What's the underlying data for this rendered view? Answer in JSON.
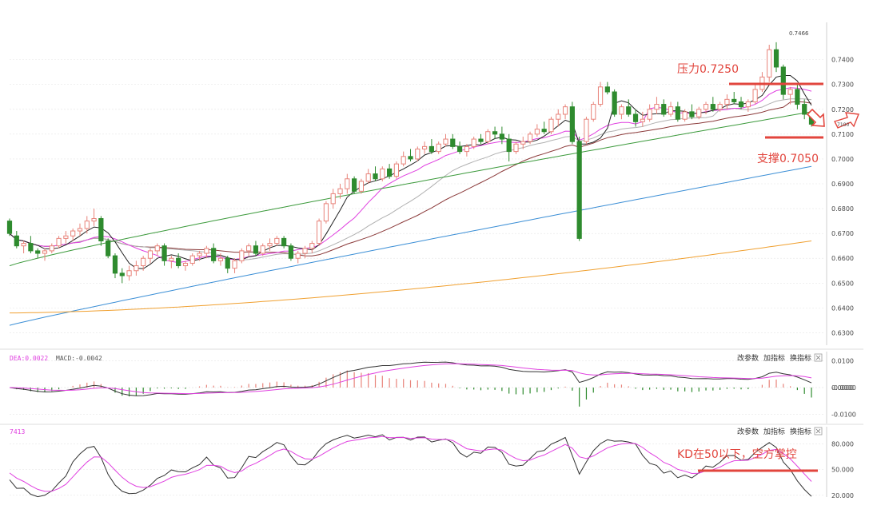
{
  "chart_data": [
    {
      "type": "candlestick",
      "name": "price",
      "ylim": [
        0.625,
        0.755
      ],
      "y_ticks": [
        "0.6300",
        "0.6400",
        "0.6500",
        "0.6600",
        "0.6700",
        "0.6800",
        "0.6900",
        "0.7000",
        "0.7100",
        "0.7200",
        "0.7300",
        "0.7400"
      ],
      "high_label": "0.7466",
      "grid": true,
      "colors": {
        "up": "#e8837a",
        "down": "#2e8b2e",
        "ma5": "#222222",
        "ma10": "#e040e0",
        "ma20": "#b0b0b0",
        "ma30": "#8b3a3a",
        "ma60": "#3c9a3c",
        "ma120": "#3c8fd6",
        "ma250": "#f0a030"
      },
      "candles": [
        [
          0.675,
          0.676,
          0.669,
          0.67
        ],
        [
          0.669,
          0.671,
          0.664,
          0.665
        ],
        [
          0.665,
          0.667,
          0.662,
          0.666
        ],
        [
          0.666,
          0.669,
          0.662,
          0.663
        ],
        [
          0.663,
          0.664,
          0.66,
          0.662
        ],
        [
          0.662,
          0.664,
          0.659,
          0.663
        ],
        [
          0.663,
          0.666,
          0.662,
          0.665
        ],
        [
          0.665,
          0.669,
          0.664,
          0.668
        ],
        [
          0.668,
          0.671,
          0.666,
          0.669
        ],
        [
          0.669,
          0.672,
          0.667,
          0.671
        ],
        [
          0.671,
          0.674,
          0.669,
          0.672
        ],
        [
          0.672,
          0.677,
          0.67,
          0.675
        ],
        [
          0.675,
          0.68,
          0.673,
          0.676
        ],
        [
          0.676,
          0.677,
          0.665,
          0.667
        ],
        [
          0.667,
          0.668,
          0.66,
          0.661
        ],
        [
          0.661,
          0.662,
          0.652,
          0.654
        ],
        [
          0.654,
          0.656,
          0.65,
          0.653
        ],
        [
          0.653,
          0.657,
          0.651,
          0.655
        ],
        [
          0.655,
          0.659,
          0.653,
          0.657
        ],
        [
          0.657,
          0.661,
          0.655,
          0.66
        ],
        [
          0.66,
          0.664,
          0.658,
          0.663
        ],
        [
          0.663,
          0.666,
          0.661,
          0.665
        ],
        [
          0.665,
          0.666,
          0.657,
          0.659
        ],
        [
          0.659,
          0.661,
          0.656,
          0.66
        ],
        [
          0.66,
          0.662,
          0.656,
          0.657
        ],
        [
          0.657,
          0.659,
          0.655,
          0.658
        ],
        [
          0.658,
          0.662,
          0.657,
          0.661
        ],
        [
          0.661,
          0.663,
          0.659,
          0.662
        ],
        [
          0.662,
          0.665,
          0.66,
          0.664
        ],
        [
          0.664,
          0.666,
          0.658,
          0.659
        ],
        [
          0.659,
          0.662,
          0.657,
          0.66
        ],
        [
          0.66,
          0.661,
          0.654,
          0.656
        ],
        [
          0.656,
          0.66,
          0.654,
          0.659
        ],
        [
          0.659,
          0.664,
          0.658,
          0.663
        ],
        [
          0.663,
          0.666,
          0.661,
          0.665
        ],
        [
          0.665,
          0.667,
          0.661,
          0.662
        ],
        [
          0.662,
          0.666,
          0.661,
          0.665
        ],
        [
          0.665,
          0.668,
          0.663,
          0.666
        ],
        [
          0.666,
          0.669,
          0.665,
          0.668
        ],
        [
          0.668,
          0.669,
          0.664,
          0.665
        ],
        [
          0.665,
          0.666,
          0.659,
          0.66
        ],
        [
          0.66,
          0.663,
          0.658,
          0.662
        ],
        [
          0.662,
          0.665,
          0.66,
          0.664
        ],
        [
          0.664,
          0.667,
          0.662,
          0.666
        ],
        [
          0.666,
          0.676,
          0.665,
          0.675
        ],
        [
          0.675,
          0.683,
          0.674,
          0.682
        ],
        [
          0.682,
          0.688,
          0.68,
          0.686
        ],
        [
          0.686,
          0.69,
          0.684,
          0.688
        ],
        [
          0.688,
          0.694,
          0.686,
          0.692
        ],
        [
          0.692,
          0.693,
          0.686,
          0.687
        ],
        [
          0.687,
          0.692,
          0.686,
          0.691
        ],
        [
          0.691,
          0.696,
          0.69,
          0.694
        ],
        [
          0.694,
          0.697,
          0.691,
          0.692
        ],
        [
          0.692,
          0.697,
          0.691,
          0.696
        ],
        [
          0.696,
          0.698,
          0.692,
          0.693
        ],
        [
          0.693,
          0.699,
          0.692,
          0.698
        ],
        [
          0.698,
          0.703,
          0.697,
          0.701
        ],
        [
          0.701,
          0.704,
          0.699,
          0.7
        ],
        [
          0.7,
          0.705,
          0.699,
          0.704
        ],
        [
          0.704,
          0.707,
          0.702,
          0.705
        ],
        [
          0.705,
          0.708,
          0.702,
          0.703
        ],
        [
          0.703,
          0.707,
          0.702,
          0.706
        ],
        [
          0.706,
          0.71,
          0.705,
          0.708
        ],
        [
          0.708,
          0.71,
          0.704,
          0.705
        ],
        [
          0.705,
          0.707,
          0.702,
          0.703
        ],
        [
          0.703,
          0.706,
          0.701,
          0.705
        ],
        [
          0.705,
          0.709,
          0.704,
          0.708
        ],
        [
          0.708,
          0.71,
          0.706,
          0.707
        ],
        [
          0.707,
          0.712,
          0.706,
          0.711
        ],
        [
          0.711,
          0.713,
          0.708,
          0.71
        ],
        [
          0.71,
          0.713,
          0.706,
          0.708
        ],
        [
          0.708,
          0.71,
          0.699,
          0.703
        ],
        [
          0.703,
          0.707,
          0.702,
          0.706
        ],
        [
          0.706,
          0.709,
          0.704,
          0.707
        ],
        [
          0.707,
          0.711,
          0.706,
          0.71
        ],
        [
          0.71,
          0.714,
          0.709,
          0.712
        ],
        [
          0.712,
          0.715,
          0.71,
          0.711
        ],
        [
          0.711,
          0.717,
          0.71,
          0.716
        ],
        [
          0.716,
          0.72,
          0.713,
          0.718
        ],
        [
          0.718,
          0.722,
          0.716,
          0.721
        ],
        [
          0.721,
          0.723,
          0.706,
          0.707
        ],
        [
          0.707,
          0.709,
          0.667,
          0.668
        ],
        [
          0.707,
          0.717,
          0.706,
          0.716
        ],
        [
          0.716,
          0.723,
          0.715,
          0.722
        ],
        [
          0.722,
          0.731,
          0.721,
          0.729
        ],
        [
          0.729,
          0.731,
          0.726,
          0.727
        ],
        [
          0.727,
          0.728,
          0.717,
          0.718
        ],
        [
          0.718,
          0.722,
          0.716,
          0.721
        ],
        [
          0.721,
          0.724,
          0.717,
          0.718
        ],
        [
          0.718,
          0.72,
          0.713,
          0.715
        ],
        [
          0.715,
          0.719,
          0.713,
          0.716
        ],
        [
          0.716,
          0.722,
          0.715,
          0.72
        ],
        [
          0.72,
          0.725,
          0.718,
          0.722
        ],
        [
          0.722,
          0.724,
          0.717,
          0.718
        ],
        [
          0.718,
          0.723,
          0.717,
          0.721
        ],
        [
          0.721,
          0.723,
          0.715,
          0.716
        ],
        [
          0.716,
          0.72,
          0.715,
          0.719
        ],
        [
          0.719,
          0.722,
          0.716,
          0.717
        ],
        [
          0.717,
          0.721,
          0.716,
          0.72
        ],
        [
          0.72,
          0.723,
          0.718,
          0.722
        ],
        [
          0.722,
          0.725,
          0.719,
          0.72
        ],
        [
          0.72,
          0.723,
          0.719,
          0.722
        ],
        [
          0.722,
          0.726,
          0.72,
          0.724
        ],
        [
          0.724,
          0.727,
          0.722,
          0.723
        ],
        [
          0.723,
          0.725,
          0.72,
          0.721
        ],
        [
          0.721,
          0.724,
          0.719,
          0.723
        ],
        [
          0.723,
          0.73,
          0.722,
          0.728
        ],
        [
          0.728,
          0.735,
          0.727,
          0.733
        ],
        [
          0.733,
          0.746,
          0.731,
          0.744
        ],
        [
          0.744,
          0.747,
          0.735,
          0.737
        ],
        [
          0.737,
          0.738,
          0.724,
          0.726
        ],
        [
          0.726,
          0.729,
          0.722,
          0.728
        ],
        [
          0.728,
          0.73,
          0.72,
          0.722
        ],
        [
          0.722,
          0.724,
          0.716,
          0.718
        ],
        [
          0.718,
          0.719,
          0.713,
          0.714
        ]
      ]
    },
    {
      "type": "line+bar",
      "name": "macd",
      "legend": [
        "DEA:0.0022",
        "MACD:-0.0042"
      ],
      "ylim": [
        -0.0135,
        0.0135
      ],
      "y_ticks": [
        "0.0100",
        "0.0000",
        "-0.0000",
        "-0.0100"
      ],
      "buttons": [
        "改参数",
        "加指标",
        "换指标"
      ]
    },
    {
      "type": "line",
      "name": "kd",
      "legend": [
        "7413"
      ],
      "ylim": [
        18,
        100
      ],
      "y_ticks": [
        "80.000",
        "50.000",
        "20.000"
      ],
      "buttons": [
        "改参数",
        "加指标",
        "换指标"
      ]
    }
  ],
  "annotations": {
    "resistance": "压力0.7250",
    "support": "支撑0.7050",
    "kd_note": "KD在50以下，空方掌控",
    "arrow_label": "7100"
  }
}
